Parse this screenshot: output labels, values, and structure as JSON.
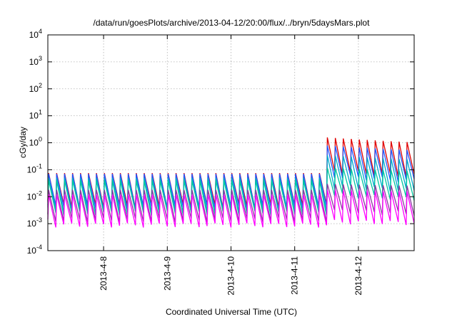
{
  "chart_data": {
    "type": "line",
    "title": "/data/run/goesPlots/archive/2013-04-12/20:00/flux/../bryn/5daysMars.plot",
    "xlabel": "Coordinated Universal Time (UTC)",
    "ylabel": "cGy/day",
    "yscale": "log",
    "ylim": [
      0.0001,
      10000
    ],
    "xlim": [
      "2013-04-07T03:00",
      "2013-04-12T21:00"
    ],
    "grid": true,
    "legend": "none",
    "y_ticks": [
      {
        "base": "10",
        "exp": "-4"
      },
      {
        "base": "10",
        "exp": "-3"
      },
      {
        "base": "10",
        "exp": "-2"
      },
      {
        "base": "10",
        "exp": "-1"
      },
      {
        "base": "10",
        "exp": "0"
      },
      {
        "base": "10",
        "exp": "1"
      },
      {
        "base": "10",
        "exp": "2"
      },
      {
        "base": "10",
        "exp": "3"
      },
      {
        "base": "10",
        "exp": "4"
      }
    ],
    "x_ticks": [
      {
        "label": "2013-4-8",
        "value": "2013-04-08T00:00"
      },
      {
        "label": "2013-4-9",
        "value": "2013-04-09T00:00"
      },
      {
        "label": "2013-4-10",
        "value": "2013-04-10T00:00"
      },
      {
        "label": "2013-4-11",
        "value": "2013-04-11T00:00"
      },
      {
        "label": "2013-4-12",
        "value": "2013-04-12T00:00"
      }
    ],
    "event_onset": "2013-04-11T11:00",
    "series": [
      {
        "color": "#e00000",
        "pre_peak": 0.075,
        "pre_trough": 0.0045,
        "post_peak": 1.6,
        "post_trough": 0.09
      },
      {
        "color": "#2255ff",
        "pre_peak": 0.07,
        "pre_trough": 0.004,
        "post_peak": 0.8,
        "post_trough": 0.06
      },
      {
        "color": "#00aacc",
        "pre_peak": 0.05,
        "pre_trough": 0.003,
        "post_peak": 0.35,
        "post_trough": 0.025
      },
      {
        "color": "#00c8a0",
        "pre_peak": 0.04,
        "pre_trough": 0.0025,
        "post_peak": 0.12,
        "post_trough": 0.012
      },
      {
        "color": "#8a3aa0",
        "pre_peak": 0.018,
        "pre_trough": 0.0014,
        "post_peak": 0.03,
        "post_trough": 0.003
      },
      {
        "color": "#ff00ff",
        "pre_peak": 0.012,
        "pre_trough": 0.0009,
        "post_peak": 0.018,
        "post_trough": 0.0012
      }
    ]
  }
}
